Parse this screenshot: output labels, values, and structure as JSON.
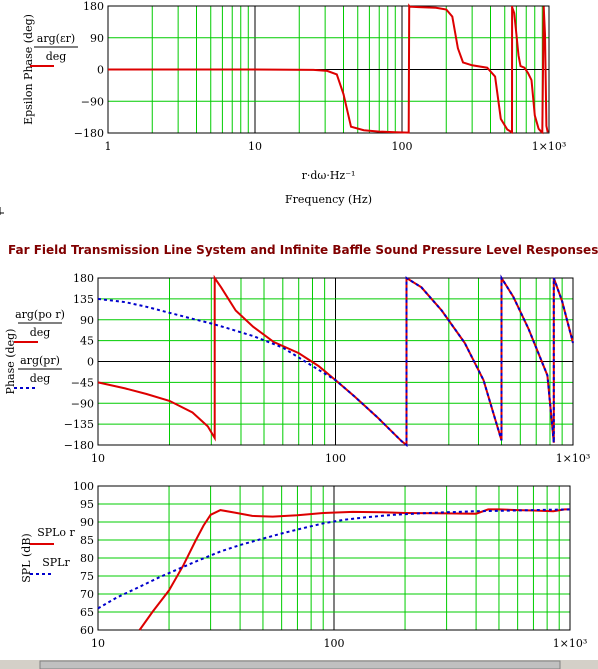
{
  "page_title": "Far Field Transmission Line System and Infinite Baffle Sound Pressure Level Responses",
  "colors": {
    "grid": "#00cc00",
    "red": "#dd0000",
    "blue": "#0000cc",
    "bottom_bar": "#d4d0c8"
  },
  "chart_data": [
    {
      "id": "epsilon",
      "type": "line",
      "xscale": "log",
      "xlim": [
        1,
        1000
      ],
      "ylim": [
        -180,
        180
      ],
      "ylabel": "Epsilon Phase (deg)",
      "xlabel_line1": "r·dω·Hz⁻¹",
      "xlabel_line2": "Frequency (Hz)",
      "x_ticks": [
        "1",
        "10",
        "100",
        "1×10³"
      ],
      "y_ticks": [
        "180",
        "90",
        "0",
        "−90",
        "−180"
      ],
      "legend": [
        {
          "num": "arg(εr)",
          "den": "deg",
          "color": "#dd0000",
          "dash": "solid"
        }
      ],
      "series": [
        {
          "name": "arg(εr)/deg",
          "color": "#dd0000",
          "dash": "solid",
          "x": [
            1,
            10,
            25,
            31,
            36,
            40,
            45,
            55,
            70,
            90,
            111,
            112,
            113,
            130,
            170,
            200,
            220,
            240,
            260,
            300,
            380,
            430,
            470,
            520,
            560,
            561,
            562,
            580,
            600,
            620,
            640,
            680,
            720,
            760,
            800,
            850,
            880,
            900,
            920,
            940,
            960,
            980
          ],
          "y": [
            0,
            0,
            -1,
            -4,
            -14,
            -70,
            -162,
            -172,
            -176,
            -178,
            -179,
            180,
            178,
            177,
            175,
            170,
            150,
            60,
            20,
            12,
            5,
            -20,
            -140,
            -170,
            -178,
            180,
            176,
            160,
            100,
            40,
            10,
            5,
            -10,
            -30,
            -130,
            -168,
            -175,
            -178,
            179,
            100,
            -160,
            -178
          ]
        }
      ]
    },
    {
      "id": "phase",
      "type": "line",
      "xscale": "log",
      "xlim": [
        10,
        1000
      ],
      "ylim": [
        -180,
        180
      ],
      "ylabel": "Phase (deg)",
      "x_ticks": [
        "10",
        "100",
        "1×10³"
      ],
      "y_ticks": [
        "180",
        "135",
        "90",
        "45",
        "0",
        "−45",
        "−90",
        "−135",
        "−180"
      ],
      "legend": [
        {
          "num": "arg(po r)",
          "den": "deg",
          "color": "#dd0000",
          "dash": "solid"
        },
        {
          "num": "arg(pr)",
          "den": "deg",
          "color": "#0000cc",
          "dash": "dotted"
        }
      ],
      "series": [
        {
          "name": "arg(po r)/deg",
          "color": "#dd0000",
          "dash": "solid",
          "x": [
            10,
            13,
            16,
            20,
            25,
            29,
            31,
            31.01,
            33,
            38,
            45,
            55,
            70,
            85,
            100,
            120,
            150,
            190,
            199,
            199.01,
            230,
            280,
            350,
            420,
            500,
            500.01,
            560,
            650,
            780,
            830,
            830.01,
            900,
            1000
          ],
          "y": [
            -45,
            -58,
            -70,
            -85,
            -110,
            -140,
            -165,
            180,
            160,
            110,
            75,
            42,
            18,
            -10,
            -40,
            -75,
            -120,
            -172,
            -180,
            180,
            160,
            110,
            40,
            -40,
            -170,
            180,
            140,
            70,
            -30,
            -175,
            180,
            130,
            40
          ]
        },
        {
          "name": "arg(pr)/deg",
          "color": "#0000cc",
          "dash": "dotted",
          "x": [
            10,
            13,
            16,
            20,
            25,
            30,
            35,
            45,
            60,
            80,
            100,
            120,
            150,
            190,
            199,
            199.01,
            230,
            280,
            350,
            420,
            500,
            500.01,
            560,
            650,
            780,
            830,
            830.01,
            900,
            1000
          ],
          "y": [
            135,
            128,
            118,
            105,
            92,
            82,
            72,
            55,
            30,
            -10,
            -40,
            -75,
            -120,
            -172,
            -180,
            180,
            160,
            110,
            40,
            -40,
            -170,
            180,
            140,
            70,
            -30,
            -175,
            180,
            130,
            40
          ]
        }
      ]
    },
    {
      "id": "spl",
      "type": "line",
      "xscale": "log",
      "xlim": [
        10,
        1000
      ],
      "ylim": [
        60,
        100
      ],
      "ylabel": "SPL (dB)",
      "x_ticks": [
        "10",
        "100",
        "1×10³"
      ],
      "y_ticks": [
        "100",
        "95",
        "90",
        "85",
        "80",
        "75",
        "70",
        "65",
        "60"
      ],
      "legend": [
        {
          "num": "SPLo r",
          "color": "#dd0000",
          "dash": "solid"
        },
        {
          "num": "SPLr",
          "color": "#0000cc",
          "dash": "dotted"
        }
      ],
      "series": [
        {
          "name": "SPLo r",
          "color": "#dd0000",
          "dash": "solid",
          "x": [
            15,
            17,
            20,
            23,
            26,
            28,
            30,
            33,
            38,
            45,
            55,
            70,
            90,
            120,
            160,
            200,
            300,
            400,
            450,
            500,
            600,
            700,
            850,
            950,
            1000
          ],
          "y": [
            60,
            65,
            71,
            78,
            85,
            89,
            92,
            93.3,
            92.6,
            91.7,
            91.5,
            91.9,
            92.5,
            92.8,
            92.7,
            92.5,
            92.4,
            92.3,
            93.5,
            93.5,
            93.3,
            93.2,
            93.0,
            93.5,
            93.5
          ]
        },
        {
          "name": "SPLr",
          "color": "#0000cc",
          "dash": "dotted",
          "x": [
            10,
            12,
            15,
            18,
            22,
            27,
            33,
            40,
            50,
            60,
            75,
            90,
            110,
            140,
            180,
            230,
            300,
            400,
            500,
            700,
            1000
          ],
          "y": [
            66,
            69,
            72,
            74.5,
            77,
            79.5,
            81.8,
            83.6,
            85.4,
            86.8,
            88.4,
            89.6,
            90.6,
            91.4,
            92,
            92.4,
            92.7,
            93,
            93.1,
            93.3,
            93.5
          ]
        }
      ]
    }
  ]
}
